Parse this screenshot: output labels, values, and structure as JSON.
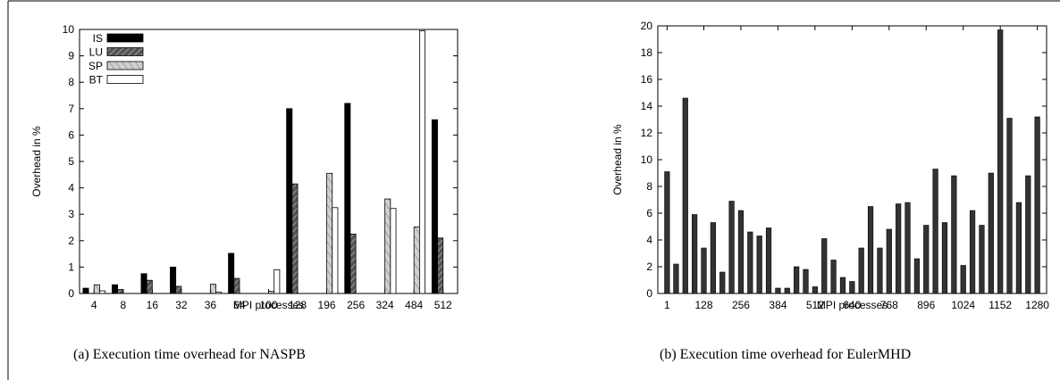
{
  "captions": {
    "a": "(a)  Execution time overhead for NASPB",
    "b": "(b)  Execution time overhead for EulerMHD"
  },
  "chart_data": [
    {
      "type": "bar",
      "title": "",
      "xlabel": "MPI processes",
      "ylabel": "Overhead in %",
      "ylim": [
        0,
        10
      ],
      "yticks": [
        0,
        1,
        2,
        3,
        4,
        5,
        6,
        7,
        8,
        9,
        10
      ],
      "legend_position": "top-left",
      "grid": false,
      "categories": [
        "4",
        "8",
        "16",
        "32",
        "36",
        "64",
        "100",
        "128",
        "196",
        "256",
        "324",
        "484",
        "512"
      ],
      "series": [
        {
          "name": "IS",
          "color": "#000000",
          "pattern": "solid",
          "values": [
            0.2,
            0.33,
            0.75,
            1.0,
            null,
            1.52,
            null,
            7.0,
            null,
            7.2,
            null,
            null,
            6.58
          ]
        },
        {
          "name": "LU",
          "color": "#555555",
          "pattern": "hatch-dark",
          "values": [
            null,
            0.15,
            0.5,
            0.27,
            null,
            0.57,
            null,
            4.15,
            null,
            2.25,
            null,
            null,
            2.1
          ]
        },
        {
          "name": "SP",
          "color": "#c8c8c8",
          "pattern": "hatch-light",
          "values": [
            0.33,
            null,
            null,
            null,
            0.35,
            null,
            0.08,
            null,
            4.55,
            null,
            3.58,
            2.52,
            null
          ]
        },
        {
          "name": "BT",
          "color": "#ffffff",
          "pattern": "hollow",
          "values": [
            0.1,
            null,
            null,
            null,
            0.05,
            null,
            0.9,
            null,
            3.25,
            null,
            3.22,
            9.95,
            null
          ]
        }
      ]
    },
    {
      "type": "bar",
      "title": "",
      "xlabel": "MPI processes",
      "ylabel": "Overhead in %",
      "ylim": [
        0,
        20
      ],
      "yticks": [
        0,
        2,
        4,
        6,
        8,
        10,
        12,
        14,
        16,
        18,
        20
      ],
      "xticks": [
        1,
        128,
        256,
        384,
        512,
        640,
        768,
        896,
        1024,
        1152,
        1280
      ],
      "xlim": [
        -31,
        1312
      ],
      "bar_color": "#333333",
      "grid": false,
      "x": [
        1,
        32,
        64,
        96,
        128,
        160,
        192,
        224,
        256,
        288,
        320,
        352,
        384,
        416,
        448,
        480,
        512,
        544,
        576,
        608,
        640,
        672,
        704,
        736,
        768,
        800,
        832,
        864,
        896,
        928,
        960,
        992,
        1024,
        1056,
        1088,
        1120,
        1152,
        1184,
        1216,
        1248,
        1280
      ],
      "values": [
        9.1,
        2.2,
        14.6,
        5.9,
        3.4,
        5.3,
        1.6,
        6.9,
        6.2,
        4.6,
        4.3,
        4.9,
        0.4,
        0.4,
        2.0,
        1.8,
        0.5,
        4.1,
        2.5,
        1.2,
        0.9,
        3.4,
        6.5,
        3.4,
        4.8,
        6.7,
        6.8,
        2.6,
        5.1,
        9.3,
        5.3,
        8.8,
        2.1,
        6.2,
        5.1,
        9.0,
        19.7,
        13.1,
        6.8,
        8.8,
        13.2
      ]
    }
  ]
}
